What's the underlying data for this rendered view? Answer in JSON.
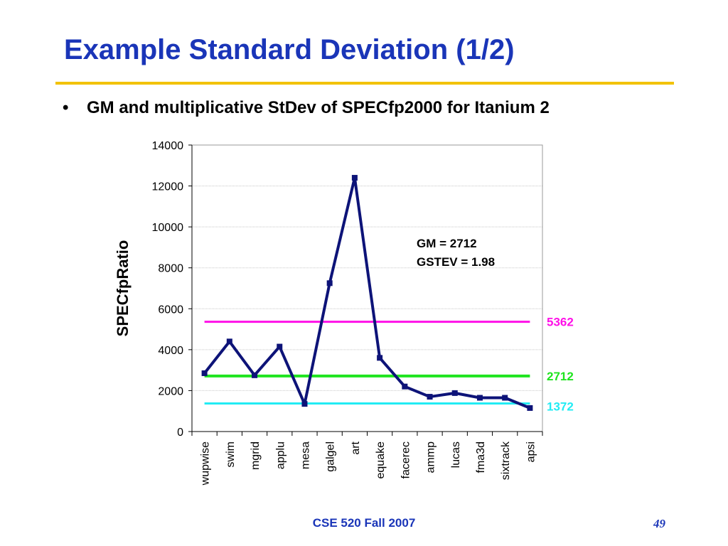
{
  "slide": {
    "title": "Example Standard Deviation (1/2)",
    "bullet_symbol": "•",
    "bullet": "GM and multiplicative StDev of SPECfp2000 for Itanium 2",
    "footer": "CSE 520 Fall 2007",
    "page_number": "49"
  },
  "chart_data": {
    "type": "line",
    "ylabel": "SPECfpRatio",
    "ylim": [
      0,
      14000
    ],
    "yticks": [
      0,
      2000,
      4000,
      6000,
      8000,
      10000,
      12000,
      14000
    ],
    "categories": [
      "wupwise",
      "swim",
      "mgrid",
      "applu",
      "mesa",
      "galgel",
      "art",
      "equake",
      "facerec",
      "ammp",
      "lucas",
      "fma3d",
      "sixtrack",
      "apsi"
    ],
    "series": [
      {
        "color": "#0d1378",
        "values": [
          2850,
          4400,
          2750,
          4150,
          1350,
          7250,
          12400,
          3600,
          2200,
          1700,
          1880,
          1650,
          1650,
          1150
        ]
      }
    ],
    "reference_lines": [
      {
        "value": 5362,
        "label": "5362",
        "color": "#ff10e8"
      },
      {
        "value": 2712,
        "label": "2712",
        "color": "#1fe41f"
      },
      {
        "value": 1372,
        "label": "1372",
        "color": "#22ecf4"
      }
    ],
    "annotations": [
      "GM = 2712",
      "GSTEV = 1.98"
    ],
    "grid": true,
    "legend": "none"
  }
}
